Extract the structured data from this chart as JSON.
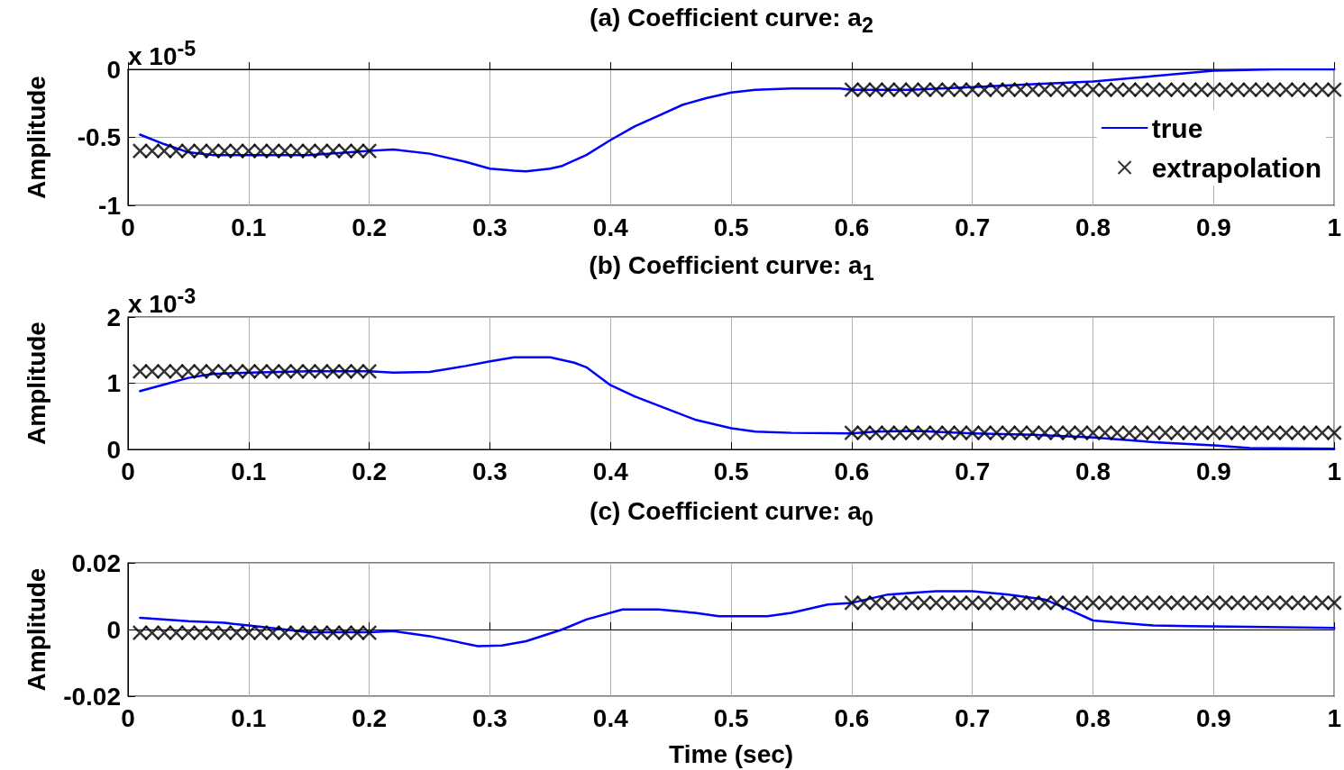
{
  "chart_data": [
    {
      "type": "line",
      "title": "(a) Coefficient curve: a$_{2}$",
      "ylabel": "Amplitude",
      "annotations": [
        "x 10$^{-5}$"
      ],
      "xlim": [
        0,
        1
      ],
      "xticks": [
        0,
        0.1,
        0.2,
        0.3,
        0.4,
        0.5,
        0.6,
        0.7,
        0.8,
        0.9,
        1
      ],
      "ylim": [
        -1,
        0
      ],
      "yticks": [
        -1,
        -0.5,
        0
      ],
      "grid": true,
      "legend": "right",
      "line_style": "solid",
      "series": [
        {
          "name": "true",
          "marker": "none",
          "color": "#0000ff",
          "x": [
            0.01,
            0.03,
            0.05,
            0.07,
            0.1,
            0.15,
            0.2,
            0.22,
            0.25,
            0.28,
            0.3,
            0.32,
            0.33,
            0.35,
            0.36,
            0.38,
            0.4,
            0.42,
            0.44,
            0.46,
            0.48,
            0.5,
            0.52,
            0.55,
            0.59,
            0.6,
            0.65,
            0.7,
            0.75,
            0.8,
            0.85,
            0.9,
            0.95,
            1
          ],
          "values": [
            -0.48,
            -0.55,
            -0.61,
            -0.63,
            -0.63,
            -0.63,
            -0.6,
            -0.59,
            -0.62,
            -0.68,
            -0.73,
            -0.745,
            -0.75,
            -0.73,
            -0.71,
            -0.63,
            -0.52,
            -0.42,
            -0.34,
            -0.26,
            -0.21,
            -0.17,
            -0.15,
            -0.14,
            -0.14,
            -0.15,
            -0.15,
            -0.13,
            -0.11,
            -0.09,
            -0.05,
            -0.01,
            0,
            0
          ]
        },
        {
          "name": "extrapolation",
          "type": "scatter",
          "marker": "cross",
          "color": "#000000",
          "x": [
            0.01,
            0.02,
            0.03,
            0.04,
            0.05,
            0.06,
            0.07,
            0.08,
            0.09,
            0.1,
            0.11,
            0.12,
            0.13,
            0.14,
            0.15,
            0.16,
            0.17,
            0.18,
            0.19,
            0.2,
            0.6,
            0.61,
            0.62,
            0.63,
            0.64,
            0.65,
            0.66,
            0.67,
            0.68,
            0.69,
            0.7,
            0.71,
            0.72,
            0.73,
            0.74,
            0.75,
            0.76,
            0.77,
            0.78,
            0.79,
            0.8,
            0.81,
            0.82,
            0.83,
            0.84,
            0.85,
            0.86,
            0.87,
            0.88,
            0.89,
            0.9,
            0.91,
            0.92,
            0.93,
            0.94,
            0.95,
            0.96,
            0.97,
            0.98,
            0.99,
            1
          ],
          "values": [
            -0.6,
            -0.6,
            -0.6,
            -0.6,
            -0.6,
            -0.6,
            -0.6,
            -0.6,
            -0.6,
            -0.6,
            -0.6,
            -0.6,
            -0.6,
            -0.6,
            -0.6,
            -0.6,
            -0.6,
            -0.6,
            -0.6,
            -0.6,
            -0.15,
            -0.15,
            -0.15,
            -0.15,
            -0.15,
            -0.15,
            -0.15,
            -0.15,
            -0.15,
            -0.15,
            -0.15,
            -0.15,
            -0.15,
            -0.15,
            -0.15,
            -0.15,
            -0.15,
            -0.15,
            -0.15,
            -0.15,
            -0.15,
            -0.15,
            -0.15,
            -0.15,
            -0.15,
            -0.15,
            -0.15,
            -0.15,
            -0.15,
            -0.15,
            -0.15,
            -0.15,
            -0.15,
            -0.15,
            -0.15,
            -0.15,
            -0.15,
            -0.15,
            -0.15,
            -0.15,
            -0.15
          ]
        }
      ]
    },
    {
      "type": "line",
      "title": "(b) Coefficient curve: a$_{1}$",
      "ylabel": "Amplitude",
      "annotations": [
        "x 10$^{-3}$"
      ],
      "xlim": [
        0,
        1
      ],
      "xticks": [
        0,
        0.1,
        0.2,
        0.3,
        0.4,
        0.5,
        0.6,
        0.7,
        0.8,
        0.9,
        1
      ],
      "ylim": [
        0,
        2
      ],
      "yticks": [
        0,
        1,
        2
      ],
      "grid": true,
      "line_style": "solid",
      "series": [
        {
          "marker": "none",
          "color": "#0000ff",
          "x": [
            0.01,
            0.03,
            0.05,
            0.07,
            0.1,
            0.15,
            0.2,
            0.22,
            0.25,
            0.28,
            0.3,
            0.32,
            0.35,
            0.37,
            0.38,
            0.4,
            0.42,
            0.45,
            0.47,
            0.5,
            0.52,
            0.55,
            0.6,
            0.62,
            0.65,
            0.7,
            0.75,
            0.8,
            0.85,
            0.9,
            0.93,
            1
          ],
          "values": [
            0.88,
            0.98,
            1.08,
            1.14,
            1.16,
            1.18,
            1.18,
            1.16,
            1.17,
            1.26,
            1.33,
            1.39,
            1.39,
            1.31,
            1.24,
            0.97,
            0.8,
            0.59,
            0.45,
            0.32,
            0.27,
            0.25,
            0.24,
            0.27,
            0.28,
            0.24,
            0.22,
            0.18,
            0.11,
            0.06,
            0.02,
            0.01
          ]
        },
        {
          "type": "scatter",
          "marker": "cross",
          "color": "#000000",
          "x": [
            0.01,
            0.02,
            0.03,
            0.04,
            0.05,
            0.06,
            0.07,
            0.08,
            0.09,
            0.1,
            0.11,
            0.12,
            0.13,
            0.14,
            0.15,
            0.16,
            0.17,
            0.18,
            0.19,
            0.2,
            0.6,
            0.61,
            0.62,
            0.63,
            0.64,
            0.65,
            0.66,
            0.67,
            0.68,
            0.69,
            0.7,
            0.71,
            0.72,
            0.73,
            0.74,
            0.75,
            0.76,
            0.77,
            0.78,
            0.79,
            0.8,
            0.81,
            0.82,
            0.83,
            0.84,
            0.85,
            0.86,
            0.87,
            0.88,
            0.89,
            0.9,
            0.91,
            0.92,
            0.93,
            0.94,
            0.95,
            0.96,
            0.97,
            0.98,
            0.99,
            1
          ],
          "values": [
            1.18,
            1.18,
            1.18,
            1.18,
            1.18,
            1.18,
            1.18,
            1.18,
            1.18,
            1.18,
            1.18,
            1.18,
            1.18,
            1.18,
            1.18,
            1.18,
            1.18,
            1.18,
            1.18,
            1.18,
            0.25,
            0.25,
            0.25,
            0.25,
            0.25,
            0.25,
            0.25,
            0.25,
            0.25,
            0.25,
            0.25,
            0.25,
            0.25,
            0.25,
            0.25,
            0.25,
            0.25,
            0.25,
            0.25,
            0.25,
            0.25,
            0.25,
            0.25,
            0.25,
            0.25,
            0.25,
            0.25,
            0.25,
            0.25,
            0.25,
            0.25,
            0.25,
            0.25,
            0.25,
            0.25,
            0.25,
            0.25,
            0.25,
            0.25,
            0.25,
            0.25
          ]
        }
      ]
    },
    {
      "type": "line",
      "title": "(c) Coefficient curve: a$_{0}$",
      "ylabel": "Amplitude",
      "xlabel": "Time (sec)",
      "xlim": [
        0,
        1
      ],
      "xticks": [
        0,
        0.1,
        0.2,
        0.3,
        0.4,
        0.5,
        0.6,
        0.7,
        0.8,
        0.9,
        1
      ],
      "ylim": [
        -0.02,
        0.02
      ],
      "yticks": [
        -0.02,
        0,
        0.02
      ],
      "grid": true,
      "line_style": "solid",
      "series": [
        {
          "marker": "none",
          "color": "#0000ff",
          "x": [
            0.01,
            0.05,
            0.08,
            0.1,
            0.13,
            0.15,
            0.2,
            0.22,
            0.25,
            0.29,
            0.31,
            0.33,
            0.36,
            0.38,
            0.41,
            0.44,
            0.47,
            0.49,
            0.53,
            0.55,
            0.58,
            0.6,
            0.63,
            0.67,
            0.7,
            0.73,
            0.76,
            0.78,
            0.8,
            0.85,
            0.88,
            0.93,
            1
          ],
          "values": [
            0.0035,
            0.0025,
            0.002,
            0.0012,
            0,
            -0.0008,
            -0.0008,
            -0.0005,
            -0.002,
            -0.005,
            -0.0048,
            -0.0035,
            0,
            0.003,
            0.006,
            0.006,
            0.005,
            0.004,
            0.004,
            0.005,
            0.0075,
            0.008,
            0.0105,
            0.0115,
            0.0115,
            0.0105,
            0.009,
            0.006,
            0.0027,
            0.0012,
            0.001,
            0.0008,
            0.0005
          ]
        },
        {
          "type": "scatter",
          "marker": "cross",
          "color": "#000000",
          "x": [
            0.01,
            0.02,
            0.03,
            0.04,
            0.05,
            0.06,
            0.07,
            0.08,
            0.09,
            0.1,
            0.11,
            0.12,
            0.13,
            0.14,
            0.15,
            0.16,
            0.17,
            0.18,
            0.19,
            0.2,
            0.6,
            0.61,
            0.62,
            0.63,
            0.64,
            0.65,
            0.66,
            0.67,
            0.68,
            0.69,
            0.7,
            0.71,
            0.72,
            0.73,
            0.74,
            0.75,
            0.76,
            0.77,
            0.78,
            0.79,
            0.8,
            0.81,
            0.82,
            0.83,
            0.84,
            0.85,
            0.86,
            0.87,
            0.88,
            0.89,
            0.9,
            0.91,
            0.92,
            0.93,
            0.94,
            0.95,
            0.96,
            0.97,
            0.98,
            0.99,
            1
          ],
          "values": [
            -0.001,
            -0.001,
            -0.001,
            -0.001,
            -0.001,
            -0.001,
            -0.001,
            -0.001,
            -0.001,
            -0.001,
            -0.001,
            -0.001,
            -0.001,
            -0.001,
            -0.001,
            -0.001,
            -0.001,
            -0.001,
            -0.001,
            -0.001,
            0.008,
            0.008,
            0.008,
            0.008,
            0.008,
            0.008,
            0.008,
            0.008,
            0.008,
            0.008,
            0.008,
            0.008,
            0.008,
            0.008,
            0.008,
            0.008,
            0.008,
            0.008,
            0.008,
            0.008,
            0.008,
            0.008,
            0.008,
            0.008,
            0.008,
            0.008,
            0.008,
            0.008,
            0.008,
            0.008,
            0.008,
            0.008,
            0.008,
            0.008,
            0.008,
            0.008,
            0.008,
            0.008,
            0.008,
            0.008,
            0.008
          ]
        }
      ]
    }
  ]
}
